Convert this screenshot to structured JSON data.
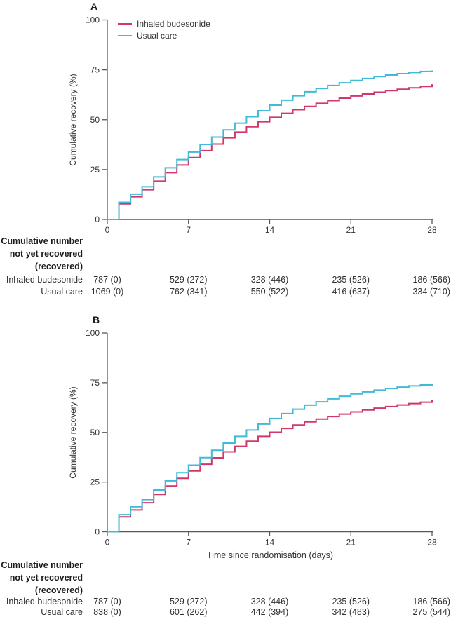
{
  "figure": {
    "description": "Two-panel Kaplan-Meier style cumulative recovery figure with risk tables"
  },
  "colors": {
    "budesonide": "#d23768",
    "usual_care": "#41b9d9",
    "axis": "#58595c",
    "tick_text": "#323232"
  },
  "chart_data": [
    {
      "type": "line",
      "subtype": "step",
      "panel": "A",
      "xlabel": "",
      "ylabel": "Cumulative recovery (%)",
      "xlim": [
        0,
        28
      ],
      "ylim": [
        0,
        100
      ],
      "x_ticks": [
        0,
        7,
        14,
        21,
        28
      ],
      "y_ticks": [
        0,
        25,
        50,
        75,
        100
      ],
      "grid": false,
      "legend_position": "top-left-inside",
      "legend": {
        "entries": [
          {
            "name": "Inhaled budesonide",
            "color": "#d23768"
          },
          {
            "name": "Usual care",
            "color": "#41b9d9"
          }
        ]
      },
      "x": [
        0,
        1,
        2,
        3,
        4,
        5,
        6,
        7,
        8,
        9,
        10,
        11,
        12,
        13,
        14,
        15,
        16,
        17,
        18,
        19,
        20,
        21,
        22,
        23,
        24,
        25,
        26,
        27,
        28
      ],
      "series": [
        {
          "name": "Inhaled budesonide",
          "color": "#d23768",
          "values": [
            0,
            7.8,
            11.4,
            14.9,
            19.2,
            23.4,
            27.3,
            31.0,
            34.5,
            37.8,
            40.9,
            43.8,
            46.5,
            49.0,
            51.2,
            53.2,
            55.0,
            56.7,
            58.2,
            59.6,
            60.8,
            61.9,
            62.9,
            63.8,
            64.6,
            65.3,
            66.0,
            66.7,
            67.8
          ]
        },
        {
          "name": "Usual care",
          "color": "#41b9d9",
          "values": [
            0,
            8.6,
            12.7,
            16.4,
            21.3,
            25.9,
            30.0,
            33.8,
            37.6,
            41.3,
            44.9,
            48.3,
            51.5,
            54.5,
            57.3,
            59.8,
            62.0,
            64.0,
            65.7,
            67.2,
            68.5,
            69.7,
            70.7,
            71.6,
            72.4,
            73.1,
            73.7,
            74.2,
            74.7
          ]
        }
      ]
    },
    {
      "type": "line",
      "subtype": "step",
      "panel": "B",
      "xlabel": "Time since randomisation (days)",
      "ylabel": "Cumulative recovery (%)",
      "xlim": [
        0,
        28
      ],
      "ylim": [
        0,
        100
      ],
      "x_ticks": [
        0,
        7,
        14,
        21,
        28
      ],
      "y_ticks": [
        0,
        25,
        50,
        75,
        100
      ],
      "grid": false,
      "legend_position": "none",
      "x": [
        0,
        1,
        2,
        3,
        4,
        5,
        6,
        7,
        8,
        9,
        10,
        11,
        12,
        13,
        14,
        15,
        16,
        17,
        18,
        19,
        20,
        21,
        22,
        23,
        24,
        25,
        26,
        27,
        28
      ],
      "series": [
        {
          "name": "Inhaled budesonide",
          "color": "#d23768",
          "values": [
            0,
            7.5,
            11.0,
            14.6,
            18.8,
            23.0,
            26.9,
            30.6,
            34.0,
            37.2,
            40.2,
            43.0,
            45.6,
            48.0,
            50.1,
            52.0,
            53.7,
            55.3,
            56.7,
            58.0,
            59.2,
            60.3,
            61.3,
            62.2,
            63.0,
            63.8,
            64.5,
            65.2,
            66.2
          ]
        },
        {
          "name": "Usual care",
          "color": "#41b9d9",
          "values": [
            0,
            8.6,
            12.6,
            16.2,
            21.0,
            25.6,
            29.7,
            33.5,
            37.3,
            41.0,
            44.6,
            48.0,
            51.2,
            54.2,
            57.0,
            59.5,
            61.7,
            63.7,
            65.4,
            66.9,
            68.2,
            69.4,
            70.4,
            71.3,
            72.1,
            72.8,
            73.4,
            73.9,
            74.3
          ]
        }
      ]
    }
  ],
  "tables": [
    {
      "panel": "A",
      "header_lines": [
        "Cumulative number",
        "not yet recovered",
        "(recovered)"
      ],
      "columns_at_days": [
        0,
        7,
        14,
        21,
        28
      ],
      "rows": [
        {
          "label": "Inhaled budesonide",
          "cells": [
            "787 (0)",
            "529 (272)",
            "328 (446)",
            "235 (526)",
            "186 (566)"
          ]
        },
        {
          "label": "Usual care",
          "cells": [
            "1069 (0)",
            "762 (341)",
            "550 (522)",
            "416 (637)",
            "334 (710)"
          ]
        }
      ]
    },
    {
      "panel": "B",
      "header_lines": [
        "Cumulative number",
        "not yet recovered",
        "(recovered)"
      ],
      "columns_at_days": [
        0,
        7,
        14,
        21,
        28
      ],
      "rows": [
        {
          "label": "Inhaled budesonide",
          "cells": [
            "787 (0)",
            "529 (272)",
            "328 (446)",
            "235 (526)",
            "186 (566)"
          ]
        },
        {
          "label": "Usual care",
          "cells": [
            "838 (0)",
            "601 (262)",
            "442 (394)",
            "342 (483)",
            "275 (544)"
          ]
        }
      ]
    }
  ]
}
